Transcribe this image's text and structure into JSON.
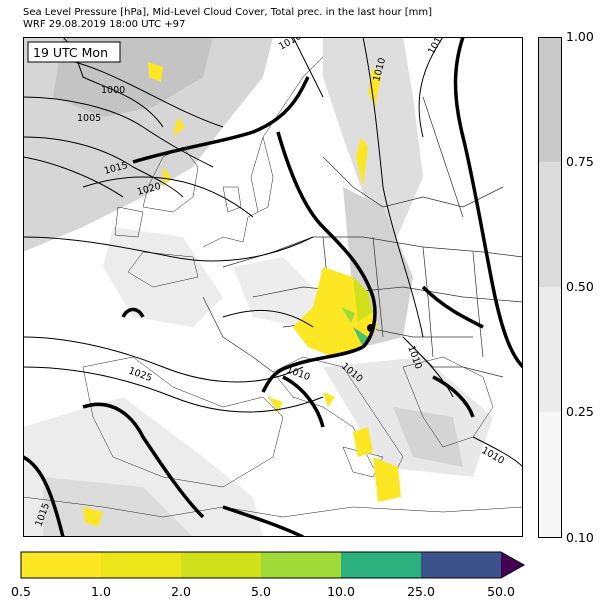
{
  "header": {
    "title_line1": "Sea Level Pressure [hPa], Mid-Level Cloud Cover, Total prec. in the last hour [mm]",
    "title_line2": "WRF 29.08.2019 18:00 UTC +97"
  },
  "map": {
    "time_label": "19 UTC Mon",
    "isobar_labels": [
      "1010",
      "1015",
      "1000",
      "1005",
      "1010",
      "1015",
      "1020",
      "1025",
      "1010",
      "1010",
      "1010",
      "1010",
      "1015"
    ]
  },
  "cloud_colorbar": {
    "ticks": [
      "1.00",
      "0.75",
      "0.50",
      "0.25",
      "0.10"
    ],
    "colors": [
      "#c9c9c9",
      "#dcdcdc",
      "#ebebeb",
      "#f7f7f7"
    ]
  },
  "precip_colorbar": {
    "ticks": [
      "0.5",
      "1.0",
      "2.0",
      "5.0",
      "10.0",
      "25.0",
      "50.0"
    ],
    "colors": [
      "#fde725",
      "#ebe51a",
      "#d0e11c",
      "#a0da39",
      "#4ac16d",
      "#2cb17e",
      "#3b528b",
      "#440154"
    ]
  }
}
